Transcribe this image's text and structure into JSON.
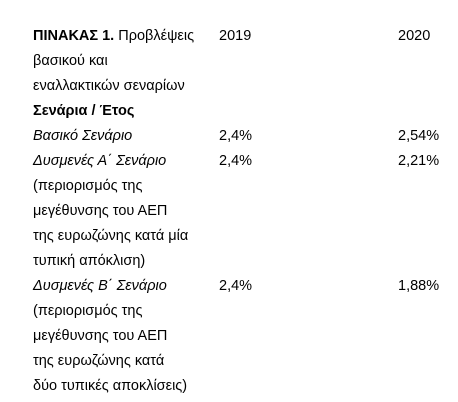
{
  "table": {
    "title_prefix": "ΠΙΝΑΚΑΣ 1.",
    "title_lines": [
      "Προβλέψεις",
      "βασικού και",
      "εναλλακτικών σεναρίων"
    ],
    "header_row_label": "Σενάρια / Έτος",
    "years": [
      "2019",
      "2020"
    ],
    "rows": [
      {
        "name": "Βασικό Σενάριο",
        "detail_lines": [],
        "v2019": "2,4%",
        "v2020": "2,54%"
      },
      {
        "name": "Δυσμενές Α΄ Σενάριο",
        "detail_lines": [
          "(περιορισμός της",
          "μεγέθυνσης του ΑΕΠ",
          "της ευρωζώνης κατά μία",
          "τυπική απόκλιση)"
        ],
        "v2019": "2,4%",
        "v2020": "2,21%"
      },
      {
        "name": "Δυσμενές Β΄ Σενάριο",
        "detail_lines": [
          "(περιορισμός της",
          "μεγέθυνσης του ΑΕΠ",
          "της ευρωζώνης κατά",
          "δύο τυπικές αποκλίσεις)"
        ],
        "v2019": "2,4%",
        "v2020": "1,88%"
      }
    ]
  }
}
